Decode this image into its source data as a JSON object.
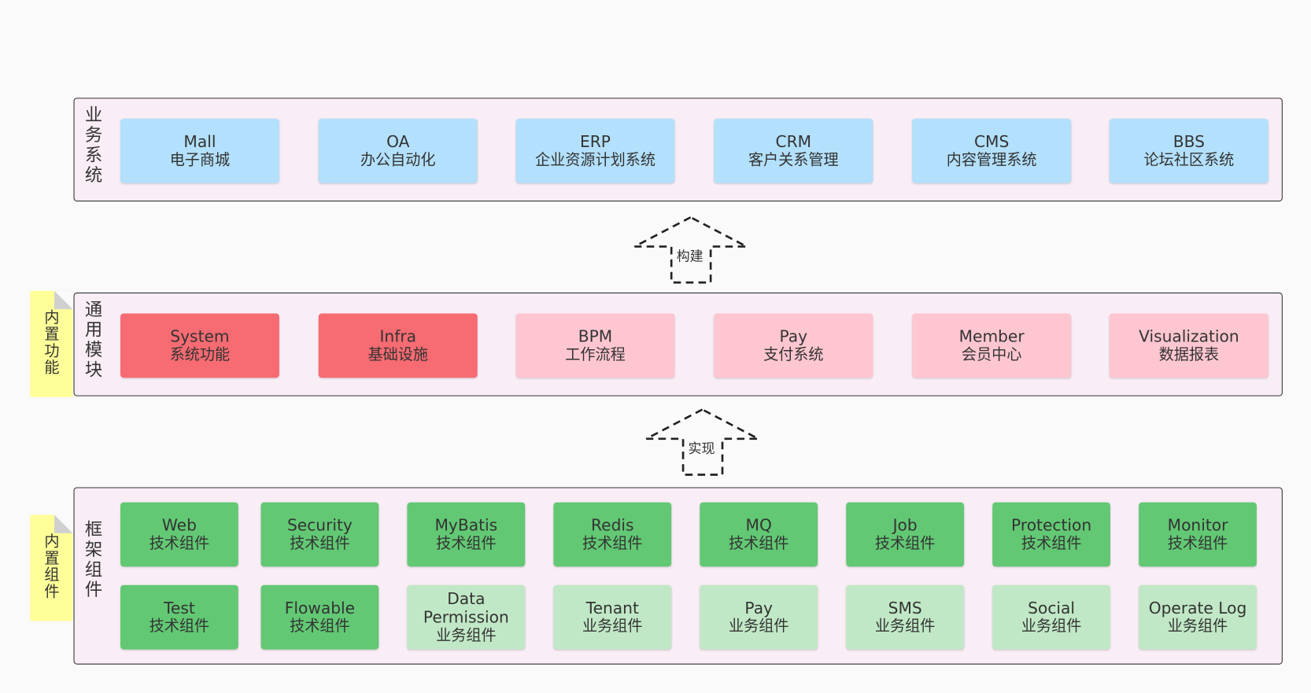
{
  "layers": [
    {
      "label": "业务系统",
      "items": [
        {
          "title": "Mall",
          "subtitle": "电子商城",
          "color": "#b3e0fc"
        },
        {
          "title": "OA",
          "subtitle": "办公自动化",
          "color": "#b3e0fc"
        },
        {
          "title": "ERP",
          "subtitle": "企业资源计划系统",
          "color": "#b3e0fc"
        },
        {
          "title": "CRM",
          "subtitle": "客户关系管理",
          "color": "#b3e0fc"
        },
        {
          "title": "CMS",
          "subtitle": "内容管理系统",
          "color": "#b3e0fc"
        },
        {
          "title": "BBS",
          "subtitle": "论坛社区系统",
          "color": "#b3e0fc"
        }
      ]
    },
    {
      "label": "通用模块",
      "note": "内置功能",
      "items": [
        {
          "title": "System",
          "subtitle": "系统功能",
          "color": "#f76b72"
        },
        {
          "title": "Infra",
          "subtitle": "基础设施",
          "color": "#f76b72"
        },
        {
          "title": "BPM",
          "subtitle": "工作流程",
          "color": "#fec6d0"
        },
        {
          "title": "Pay",
          "subtitle": "支付系统",
          "color": "#fec6d0"
        },
        {
          "title": "Member",
          "subtitle": "会员中心",
          "color": "#fec6d0"
        },
        {
          "title": "Visualization",
          "subtitle": "数据报表",
          "color": "#fec6d0"
        }
      ]
    },
    {
      "label": "框架组件",
      "note": "内置组件",
      "items": [
        {
          "title": "Web",
          "subtitle": "技术组件",
          "color": "#62c874"
        },
        {
          "title": "Security",
          "subtitle": "技术组件",
          "color": "#62c874"
        },
        {
          "title": "MyBatis",
          "subtitle": "技术组件",
          "color": "#62c874"
        },
        {
          "title": "Redis",
          "subtitle": "技术组件",
          "color": "#62c874"
        },
        {
          "title": "MQ",
          "subtitle": "技术组件",
          "color": "#62c874"
        },
        {
          "title": "Job",
          "subtitle": "技术组件",
          "color": "#62c874"
        },
        {
          "title": "Protection",
          "subtitle": "技术组件",
          "color": "#62c874"
        },
        {
          "title": "Monitor",
          "subtitle": "技术组件",
          "color": "#62c874"
        },
        {
          "title": "Test",
          "subtitle": "技术组件",
          "color": "#62c874"
        },
        {
          "title": "Flowable",
          "subtitle": "技术组件",
          "color": "#62c874"
        },
        {
          "title": "Data Permission",
          "subtitle": "业务组件",
          "color": "#c1e8c6"
        },
        {
          "title": "Tenant",
          "subtitle": "业务组件",
          "color": "#c1e8c6"
        },
        {
          "title": "Pay",
          "subtitle": "业务组件",
          "color": "#c1e8c6"
        },
        {
          "title": "SMS",
          "subtitle": "业务组件",
          "color": "#c1e8c6"
        },
        {
          "title": "Social",
          "subtitle": "业务组件",
          "color": "#c1e8c6"
        },
        {
          "title": "Operate Log",
          "subtitle": "业务组件",
          "color": "#c1e8c6"
        }
      ]
    }
  ],
  "arrows": [
    {
      "label": "构建"
    },
    {
      "label": "实现"
    }
  ]
}
